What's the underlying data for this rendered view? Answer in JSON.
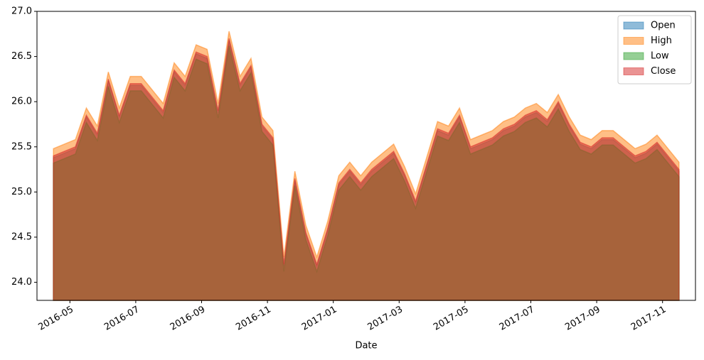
{
  "chart_data": {
    "type": "area",
    "xlabel": "Date",
    "x": [
      "2016-04",
      "2016-05",
      "2016-05",
      "2016-05",
      "2016-06",
      "2016-06",
      "2016-06",
      "2016-07",
      "2016-07",
      "2016-07",
      "2016-08",
      "2016-08",
      "2016-08",
      "2016-09",
      "2016-09",
      "2016-09",
      "2016-10",
      "2016-10",
      "2016-10",
      "2016-11",
      "2016-11",
      "2016-11",
      "2016-12",
      "2016-12",
      "2016-12",
      "2017-01",
      "2017-01",
      "2017-01",
      "2017-02",
      "2017-02",
      "2017-02",
      "2017-03",
      "2017-03",
      "2017-03",
      "2017-04",
      "2017-04",
      "2017-04",
      "2017-05",
      "2017-05",
      "2017-05",
      "2017-06",
      "2017-06",
      "2017-06",
      "2017-07",
      "2017-07",
      "2017-07",
      "2017-08",
      "2017-08",
      "2017-08",
      "2017-09",
      "2017-09",
      "2017-09",
      "2017-10",
      "2017-10",
      "2017-10",
      "2017-11"
    ],
    "series": [
      {
        "name": "Open",
        "color": "#1f77b4",
        "values": [
          25.38,
          25.48,
          25.83,
          25.63,
          26.23,
          25.83,
          26.18,
          26.18,
          26.03,
          25.88,
          26.33,
          26.18,
          26.53,
          26.48,
          25.88,
          26.68,
          26.18,
          26.38,
          25.73,
          25.58,
          24.18,
          25.13,
          24.53,
          24.18,
          24.58,
          25.08,
          25.23,
          25.08,
          25.23,
          25.33,
          25.43,
          25.18,
          24.88,
          25.28,
          25.68,
          25.63,
          25.83,
          25.48,
          25.53,
          25.58,
          25.68,
          25.73,
          25.83,
          25.88,
          25.78,
          25.98,
          25.73,
          25.53,
          25.48,
          25.58,
          25.58,
          25.48,
          25.38,
          25.43,
          25.53,
          25.23
        ]
      },
      {
        "name": "High",
        "color": "#ff7f0e",
        "values": [
          25.48,
          25.58,
          25.93,
          25.73,
          26.33,
          25.93,
          26.28,
          26.28,
          26.13,
          25.98,
          26.43,
          26.28,
          26.63,
          26.58,
          25.98,
          26.78,
          26.28,
          26.48,
          25.83,
          25.68,
          24.28,
          25.23,
          24.63,
          24.28,
          24.68,
          25.18,
          25.33,
          25.18,
          25.33,
          25.43,
          25.53,
          25.28,
          24.98,
          25.38,
          25.78,
          25.73,
          25.93,
          25.58,
          25.63,
          25.68,
          25.78,
          25.83,
          25.93,
          25.98,
          25.88,
          26.08,
          25.83,
          25.63,
          25.58,
          25.68,
          25.68,
          25.58,
          25.48,
          25.53,
          25.63,
          25.33
        ]
      },
      {
        "name": "Low",
        "color": "#2ca02c",
        "values": [
          25.32,
          25.42,
          25.77,
          25.57,
          26.17,
          25.77,
          26.12,
          26.12,
          25.97,
          25.82,
          26.27,
          26.12,
          26.47,
          26.42,
          25.82,
          26.62,
          26.12,
          26.32,
          25.67,
          25.52,
          24.12,
          25.07,
          24.47,
          24.12,
          24.52,
          25.02,
          25.17,
          25.02,
          25.17,
          25.27,
          25.37,
          25.12,
          24.82,
          25.22,
          25.62,
          25.57,
          25.77,
          25.42,
          25.47,
          25.52,
          25.62,
          25.67,
          25.77,
          25.82,
          25.72,
          25.92,
          25.67,
          25.47,
          25.42,
          25.52,
          25.52,
          25.42,
          25.32,
          25.37,
          25.47,
          25.17
        ]
      },
      {
        "name": "Close",
        "color": "#d62728",
        "values": [
          25.4,
          25.5,
          25.85,
          25.65,
          26.25,
          25.85,
          26.2,
          26.2,
          26.05,
          25.9,
          26.35,
          26.2,
          26.55,
          26.5,
          25.9,
          26.7,
          26.2,
          26.4,
          25.75,
          25.6,
          24.2,
          25.15,
          24.55,
          24.2,
          24.6,
          25.1,
          25.25,
          25.1,
          25.25,
          25.35,
          25.45,
          25.2,
          24.9,
          25.3,
          25.7,
          25.65,
          25.85,
          25.5,
          25.55,
          25.6,
          25.7,
          25.75,
          25.85,
          25.9,
          25.8,
          26.0,
          25.75,
          25.55,
          25.5,
          25.6,
          25.6,
          25.5,
          25.4,
          25.45,
          25.55,
          25.25
        ]
      }
    ],
    "xlim": [
      "2016-04",
      "2017-12"
    ],
    "xticks": [
      "2016-05",
      "2016-07",
      "2016-09",
      "2016-11",
      "2017-01",
      "2017-03",
      "2017-05",
      "2017-07",
      "2017-09",
      "2017-11"
    ],
    "ylim": [
      23.8,
      27.0
    ],
    "yticks": [
      {
        "value": 24,
        "label": "24.0"
      },
      24.5,
      {
        "value": 25,
        "label": "25.0"
      },
      25.5,
      {
        "value": 26,
        "label": "26.0"
      },
      26.5,
      {
        "value": 27,
        "label": "27.0"
      }
    ],
    "legend": "upper right"
  }
}
